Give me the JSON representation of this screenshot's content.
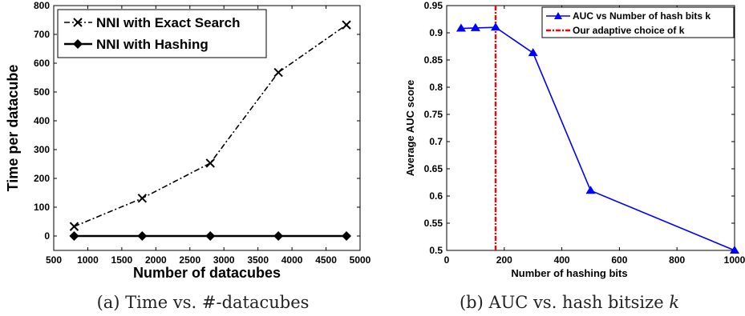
{
  "chart_data": [
    {
      "type": "line",
      "xlabel": "Number of datacubes",
      "ylabel": "Time per datacube",
      "xlim": [
        500,
        5000
      ],
      "ylim": [
        -50,
        800
      ],
      "xticks": [
        500,
        1000,
        1500,
        2000,
        2500,
        3000,
        3500,
        4000,
        4500,
        5000
      ],
      "yticks": [
        0,
        100,
        200,
        300,
        400,
        500,
        600,
        700,
        800
      ],
      "grid": false,
      "legend_position": "top-left",
      "x": [
        800,
        1800,
        2800,
        3800,
        4800
      ],
      "series": [
        {
          "name": "NNI with Exact Search",
          "values": [
            33,
            131,
            253,
            568,
            733
          ],
          "color": "#000000",
          "line": "dash-dot",
          "marker": "x"
        },
        {
          "name": "NNI with Hashing",
          "values": [
            0,
            0,
            0,
            0,
            0
          ],
          "color": "#000000",
          "line": "solid",
          "marker": "diamond"
        }
      ],
      "caption": "(a) Time vs. #-datacubes"
    },
    {
      "type": "line",
      "xlabel": "Number of hashing bits",
      "ylabel": "Average AUC score",
      "xlim": [
        0,
        1000
      ],
      "ylim": [
        0.5,
        0.95
      ],
      "xticks": [
        0,
        200,
        400,
        600,
        800,
        1000
      ],
      "yticks": [
        0.5,
        0.55,
        0.6,
        0.65,
        0.7,
        0.75,
        0.8,
        0.85,
        0.9,
        0.95
      ],
      "grid": false,
      "legend_position": "top-right",
      "x": [
        50,
        100,
        170,
        300,
        500,
        1000
      ],
      "series": [
        {
          "name": "AUC vs Number of hash bits k",
          "values": [
            0.908,
            0.909,
            0.91,
            0.863,
            0.61,
            0.5
          ],
          "color": "#0000ff",
          "line": "solid",
          "marker": "triangle"
        }
      ],
      "vline": {
        "name": "Our adaptive choice of k",
        "x": 170,
        "color": "#ff0000",
        "line": "dash-dot"
      },
      "caption_prefix": "(b) AUC vs. hash bitsize ",
      "caption_var": "k"
    }
  ]
}
